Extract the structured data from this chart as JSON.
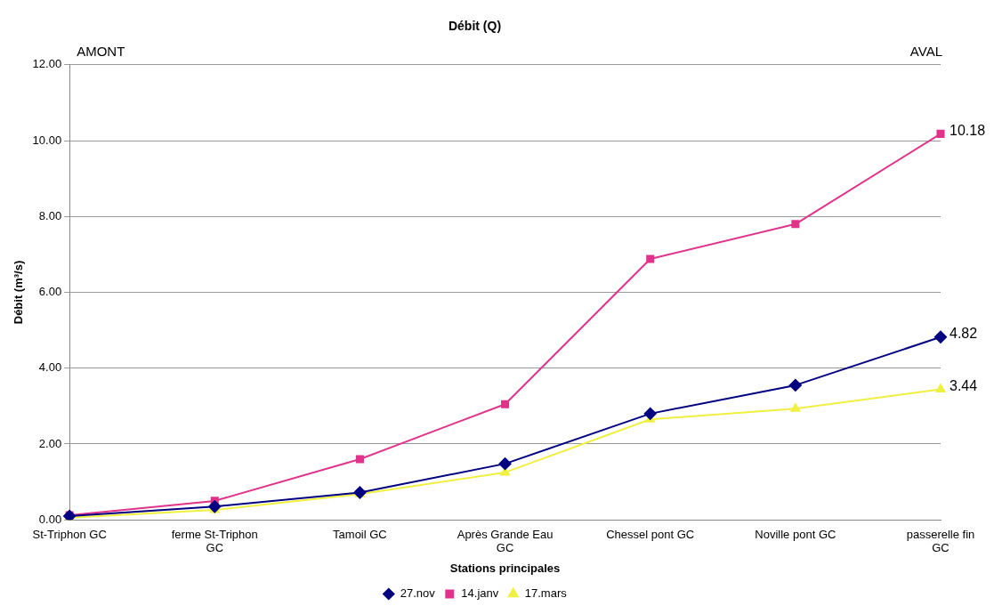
{
  "chart_data": {
    "type": "line",
    "title": "Débit (Q)",
    "xlabel": "Stations principales",
    "ylabel": "Débit (m³/s)",
    "annotations": [
      "AMONT",
      "AVAL"
    ],
    "categories": [
      "St-Triphon GC",
      "ferme St-Triphon GC",
      "Tamoil GC",
      "Après Grande Eau GC",
      "Chessel pont GC",
      "Noville pont GC",
      "passerelle fin GC"
    ],
    "series": [
      {
        "name": "27.nov",
        "color": "#000080",
        "marker": "diamond",
        "values": [
          0.1,
          0.35,
          0.72,
          1.48,
          2.8,
          3.55,
          4.82
        ],
        "value_labels": [
          null,
          null,
          null,
          null,
          null,
          null,
          "4.82"
        ]
      },
      {
        "name": "14.janv",
        "color": "#e0338a",
        "marker": "square",
        "values": [
          0.12,
          0.5,
          1.6,
          3.05,
          6.88,
          7.8,
          10.18
        ],
        "value_labels": [
          null,
          null,
          null,
          null,
          null,
          null,
          "10.18"
        ]
      },
      {
        "name": "17.mars",
        "color": "#f0f040",
        "marker": "triangle",
        "values": [
          0.06,
          0.26,
          0.68,
          1.25,
          2.65,
          2.93,
          3.44
        ],
        "value_labels": [
          null,
          null,
          null,
          null,
          null,
          null,
          "3.44"
        ]
      }
    ],
    "ylim": [
      0,
      12
    ],
    "yticks": [
      {
        "value": 0,
        "label": "0.00"
      },
      {
        "value": 2,
        "label": "2.00"
      },
      {
        "value": 4,
        "label": "4.00"
      },
      {
        "value": 6,
        "label": "6.00"
      },
      {
        "value": 8,
        "label": "8.00"
      },
      {
        "value": 10,
        "label": "10.00"
      },
      {
        "value": 12,
        "label": "12.00"
      }
    ],
    "grid": "y",
    "legend": "bottom",
    "line_style": "solid"
  }
}
